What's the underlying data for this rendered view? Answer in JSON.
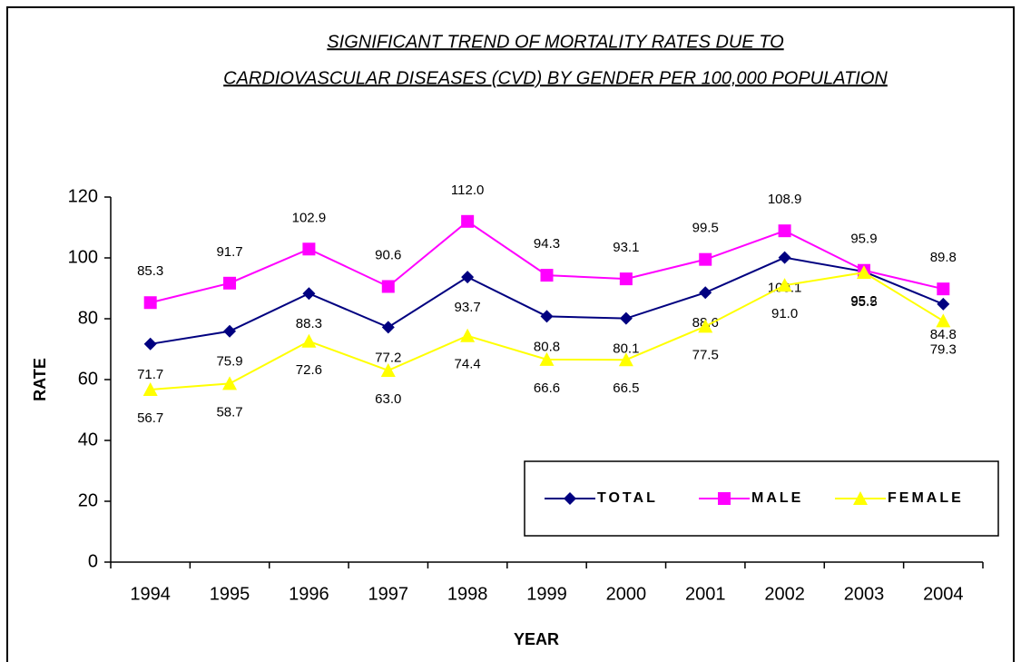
{
  "chart_data": {
    "type": "line",
    "title": [
      "SIGNIFICANT TREND OF MORTALITY RATES DUE TO",
      "CARDIOVASCULAR DISEASES (CVD) BY GENDER PER 100,000 POPULATION"
    ],
    "x_label": "YEAR",
    "y_label": "RATE",
    "categories": [
      "1994",
      "1995",
      "1996",
      "1997",
      "1998",
      "1999",
      "2000",
      "2001",
      "2002",
      "2003",
      "2004"
    ],
    "series": [
      {
        "name": "TOTAL",
        "color": "#000080",
        "marker": "diamond",
        "values": [
          71.7,
          75.9,
          88.3,
          77.2,
          93.7,
          80.8,
          80.1,
          88.6,
          100.1,
          95.5,
          84.8
        ],
        "value_labels": [
          "71.7",
          "75.9",
          "88.3",
          "77.2",
          "93.7",
          "80.8",
          "80.1",
          "88.6",
          "100.1",
          "95.5",
          "84.8"
        ]
      },
      {
        "name": "MALE",
        "color": "#ff00ff",
        "marker": "square",
        "values": [
          85.3,
          91.7,
          102.9,
          90.6,
          112.0,
          94.3,
          93.1,
          99.5,
          108.9,
          95.9,
          89.8
        ],
        "value_labels": [
          "85.3",
          "91.7",
          "102.9",
          "90.6",
          "112.0",
          "94.3",
          "93.1",
          "99.5",
          "108.9",
          "95.9",
          "89.8"
        ]
      },
      {
        "name": "FEMALE",
        "color": "#ffff00",
        "marker": "triangle",
        "values": [
          56.7,
          58.7,
          72.6,
          63.0,
          74.4,
          66.6,
          66.5,
          77.5,
          91.0,
          95.2,
          79.3
        ],
        "value_labels": [
          "56.7",
          "58.7",
          "72.6",
          "63.0",
          "74.4",
          "66.6",
          "66.5",
          "77.5",
          "91.0",
          "95.2",
          "79.3"
        ]
      }
    ],
    "ylim": [
      0,
      120
    ],
    "yticks": [
      0,
      20,
      40,
      60,
      80,
      100,
      120
    ],
    "legend": "lower right"
  }
}
